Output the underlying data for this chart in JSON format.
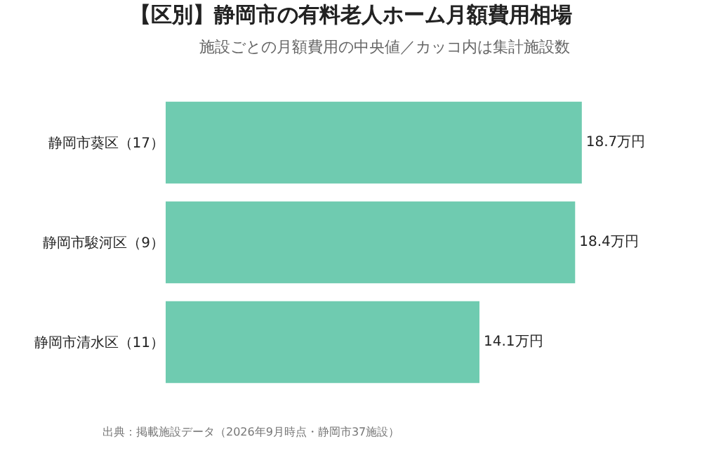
{
  "chart_data": {
    "type": "bar",
    "orientation": "horizontal",
    "title": "【区別】静岡市の有料老人ホーム月額費用相場",
    "subtitle": "施設ごとの月額費用の中央値／カッコ内は集計施設数",
    "categories": [
      "静岡市葵区（17）",
      "静岡市駿河区（9）",
      "静岡市清水区（11）"
    ],
    "values": [
      18.7,
      18.4,
      14.1
    ],
    "value_labels": [
      "18.7万円",
      "18.4万円",
      "14.1万円"
    ],
    "color": "#6fcbb0",
    "annotations": [
      "出典：掲載施設データ（2026年9月時点・静岡市37施設）"
    ],
    "grid": false
  }
}
